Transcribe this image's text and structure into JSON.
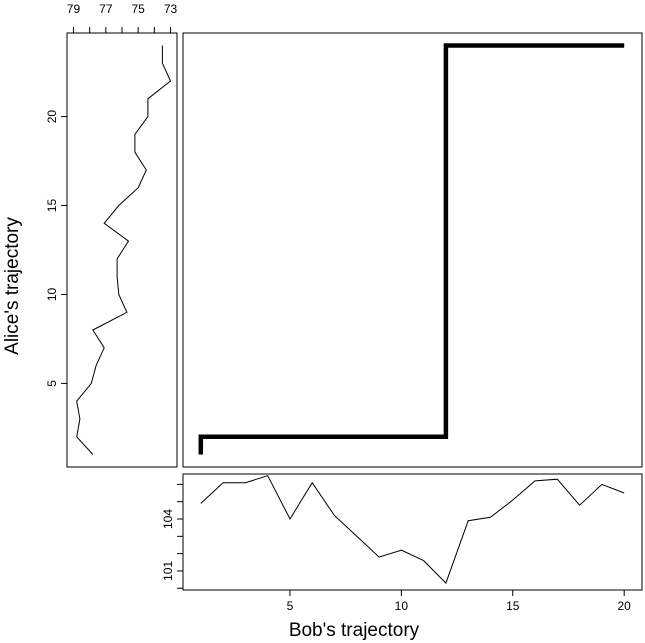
{
  "chart_data": [
    {
      "type": "line",
      "panel": "main",
      "title": "",
      "xlabel": "",
      "ylabel": "",
      "x": [
        1,
        1,
        12,
        12,
        20
      ],
      "y": [
        1,
        2,
        2,
        24,
        24
      ],
      "xlim": [
        0.2,
        20.8
      ],
      "ylim": [
        0.3,
        24.7
      ],
      "line_style": "step",
      "line_color": "#000000"
    },
    {
      "type": "line",
      "panel": "left",
      "title": "",
      "ylabel": "Alice's trajectory",
      "orientation": "vertical",
      "xaxis_position": "top",
      "x_reversed": true,
      "xticks": [
        79,
        77,
        75,
        73
      ],
      "xlim": [
        72.6,
        79.4
      ],
      "yticks": [
        5,
        10,
        15,
        20
      ],
      "ylim": [
        0.3,
        24.7
      ],
      "y": [
        1,
        2,
        3,
        4,
        5,
        6,
        7,
        8,
        9,
        10,
        11,
        12,
        13,
        14,
        15,
        16,
        17,
        18,
        19,
        20,
        21,
        22,
        23,
        24
      ],
      "x": [
        77.8,
        78.8,
        78.6,
        78.8,
        77.9,
        77.6,
        77.1,
        77.8,
        75.7,
        76.2,
        76.3,
        76.3,
        75.6,
        77.1,
        76.2,
        75.0,
        74.5,
        75.2,
        75.2,
        74.4,
        74.4,
        73.0,
        73.5,
        73.5
      ]
    },
    {
      "type": "line",
      "panel": "bottom",
      "title": "",
      "xlabel": "Bob's trajectory",
      "xticks": [
        5,
        10,
        15,
        20
      ],
      "xlim": [
        0.2,
        20.8
      ],
      "yticks": [
        101,
        104
      ],
      "ylim": [
        99.9,
        106.6
      ],
      "x": [
        1,
        2,
        3,
        4,
        5,
        6,
        7,
        8,
        9,
        10,
        11,
        12,
        13,
        14,
        15,
        16,
        17,
        18,
        19,
        20
      ],
      "y": [
        104.9,
        106.1,
        106.1,
        106.5,
        104.0,
        106.1,
        104.2,
        103.0,
        101.8,
        102.2,
        101.6,
        100.3,
        103.9,
        104.1,
        105.1,
        106.2,
        106.3,
        104.8,
        106.0,
        105.5
      ]
    }
  ]
}
